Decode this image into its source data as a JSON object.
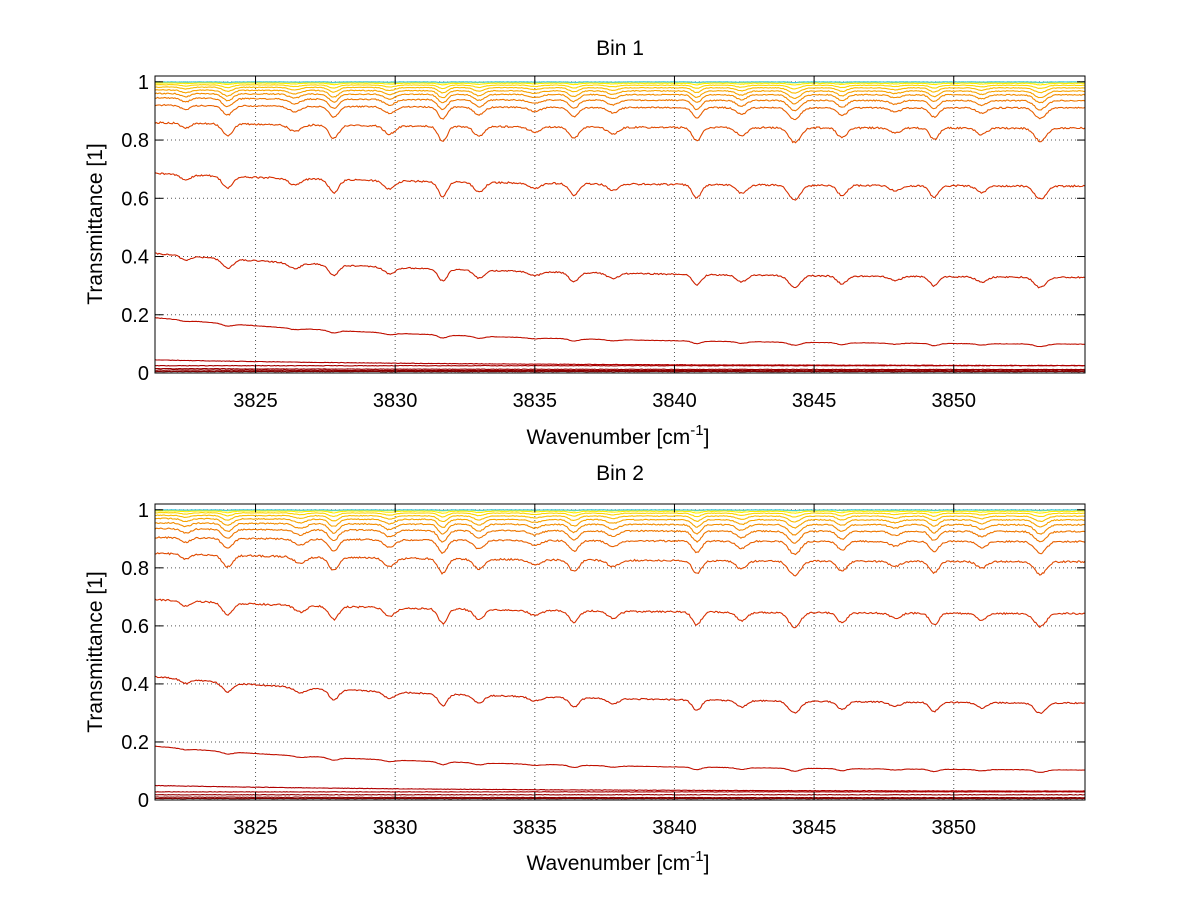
{
  "chart_data": [
    {
      "type": "line",
      "title": "Bin 1",
      "xlabel_main": "Wavenumber [cm",
      "xlabel_sup": "-1",
      "xlabel_end": "]",
      "ylabel": "Transmittance [1]",
      "xlim": [
        3821.4,
        3854.7
      ],
      "ylim": [
        0,
        1.02
      ],
      "xticks": [
        3825,
        3830,
        3835,
        3840,
        3845,
        3850
      ],
      "yticks": [
        0,
        0.2,
        0.4,
        0.6,
        0.8,
        1
      ],
      "ytick_labels": [
        "0",
        "0.2",
        "0.4",
        "0.6",
        "0.8",
        "1"
      ],
      "grid": true,
      "absorption_lines_cm1": [
        3822.5,
        3824.0,
        3826.4,
        3827.8,
        3829.8,
        3831.7,
        3833.0,
        3835.0,
        3836.4,
        3837.8,
        3840.8,
        3842.4,
        3844.3,
        3846.0,
        3847.9,
        3849.3,
        3851.0,
        3853.1
      ],
      "series": [
        {
          "color": "#7f0000",
          "baseline_start": 0.005,
          "baseline_end": 0.005,
          "depth": 0.0
        },
        {
          "color": "#8b0000",
          "baseline_start": 0.01,
          "baseline_end": 0.008,
          "depth": 0.0
        },
        {
          "color": "#990000",
          "baseline_start": 0.015,
          "baseline_end": 0.012,
          "depth": 0.0
        },
        {
          "color": "#a50000",
          "baseline_start": 0.025,
          "baseline_end": 0.025,
          "depth": 0.0
        },
        {
          "color": "#b00000",
          "baseline_start": 0.045,
          "baseline_end": 0.025,
          "depth": 0.0
        },
        {
          "color": "#c01000",
          "baseline_start": 0.19,
          "baseline_end": 0.095,
          "depth": 0.01
        },
        {
          "color": "#cc2000",
          "baseline_start": 0.41,
          "baseline_end": 0.325,
          "depth": 0.04
        },
        {
          "color": "#d83000",
          "baseline_start": 0.685,
          "baseline_end": 0.64,
          "depth": 0.05
        },
        {
          "color": "#e04a00",
          "baseline_start": 0.86,
          "baseline_end": 0.84,
          "depth": 0.05
        },
        {
          "color": "#e86000",
          "baseline_start": 0.92,
          "baseline_end": 0.91,
          "depth": 0.04
        },
        {
          "color": "#ee7700",
          "baseline_start": 0.945,
          "baseline_end": 0.935,
          "depth": 0.035
        },
        {
          "color": "#f28c00",
          "baseline_start": 0.96,
          "baseline_end": 0.955,
          "depth": 0.03
        },
        {
          "color": "#f6a300",
          "baseline_start": 0.972,
          "baseline_end": 0.968,
          "depth": 0.025
        },
        {
          "color": "#f9bb00",
          "baseline_start": 0.982,
          "baseline_end": 0.979,
          "depth": 0.018
        },
        {
          "color": "#fcd500",
          "baseline_start": 0.99,
          "baseline_end": 0.988,
          "depth": 0.012
        },
        {
          "color": "#ffee00",
          "baseline_start": 0.996,
          "baseline_end": 0.995,
          "depth": 0.006
        },
        {
          "color": "#d9f020",
          "baseline_start": 0.999,
          "baseline_end": 0.999,
          "depth": 0.003
        },
        {
          "color": "#40c8e0",
          "baseline_start": 1.0,
          "baseline_end": 1.0,
          "depth": 0.002
        }
      ]
    },
    {
      "type": "line",
      "title": "Bin 2",
      "xlabel_main": "Wavenumber [cm",
      "xlabel_sup": "-1",
      "xlabel_end": "]",
      "ylabel": "Transmittance [1]",
      "xlim": [
        3821.4,
        3854.7
      ],
      "ylim": [
        0,
        1.02
      ],
      "xticks": [
        3825,
        3830,
        3835,
        3840,
        3845,
        3850
      ],
      "yticks": [
        0,
        0.2,
        0.4,
        0.6,
        0.8,
        1
      ],
      "ytick_labels": [
        "0",
        "0.2",
        "0.4",
        "0.6",
        "0.8",
        "1"
      ],
      "grid": true,
      "absorption_lines_cm1": [
        3822.5,
        3824.0,
        3826.6,
        3827.8,
        3829.8,
        3831.7,
        3833.0,
        3835.0,
        3836.4,
        3837.8,
        3840.8,
        3842.4,
        3844.3,
        3846.0,
        3847.9,
        3849.3,
        3851.0,
        3853.1
      ],
      "series": [
        {
          "color": "#7f0000",
          "baseline_start": 0.005,
          "baseline_end": 0.005,
          "depth": 0.0
        },
        {
          "color": "#8b0000",
          "baseline_start": 0.01,
          "baseline_end": 0.008,
          "depth": 0.0
        },
        {
          "color": "#990000",
          "baseline_start": 0.018,
          "baseline_end": 0.018,
          "depth": 0.0
        },
        {
          "color": "#a50000",
          "baseline_start": 0.028,
          "baseline_end": 0.028,
          "depth": 0.0
        },
        {
          "color": "#b00000",
          "baseline_start": 0.05,
          "baseline_end": 0.03,
          "depth": 0.0
        },
        {
          "color": "#c01000",
          "baseline_start": 0.185,
          "baseline_end": 0.1,
          "depth": 0.01
        },
        {
          "color": "#cc2000",
          "baseline_start": 0.425,
          "baseline_end": 0.33,
          "depth": 0.04
        },
        {
          "color": "#d83000",
          "baseline_start": 0.69,
          "baseline_end": 0.64,
          "depth": 0.05
        },
        {
          "color": "#e04a00",
          "baseline_start": 0.85,
          "baseline_end": 0.82,
          "depth": 0.05
        },
        {
          "color": "#e86000",
          "baseline_start": 0.905,
          "baseline_end": 0.89,
          "depth": 0.045
        },
        {
          "color": "#ee7700",
          "baseline_start": 0.935,
          "baseline_end": 0.925,
          "depth": 0.04
        },
        {
          "color": "#f28c00",
          "baseline_start": 0.955,
          "baseline_end": 0.948,
          "depth": 0.035
        },
        {
          "color": "#f6a300",
          "baseline_start": 0.97,
          "baseline_end": 0.965,
          "depth": 0.028
        },
        {
          "color": "#f9bb00",
          "baseline_start": 0.981,
          "baseline_end": 0.978,
          "depth": 0.02
        },
        {
          "color": "#fcd500",
          "baseline_start": 0.99,
          "baseline_end": 0.988,
          "depth": 0.013
        },
        {
          "color": "#ffee00",
          "baseline_start": 0.996,
          "baseline_end": 0.995,
          "depth": 0.007
        },
        {
          "color": "#d9f020",
          "baseline_start": 0.999,
          "baseline_end": 0.999,
          "depth": 0.003
        },
        {
          "color": "#40c8e0",
          "baseline_start": 1.0,
          "baseline_end": 1.0,
          "depth": 0.002
        }
      ]
    }
  ]
}
